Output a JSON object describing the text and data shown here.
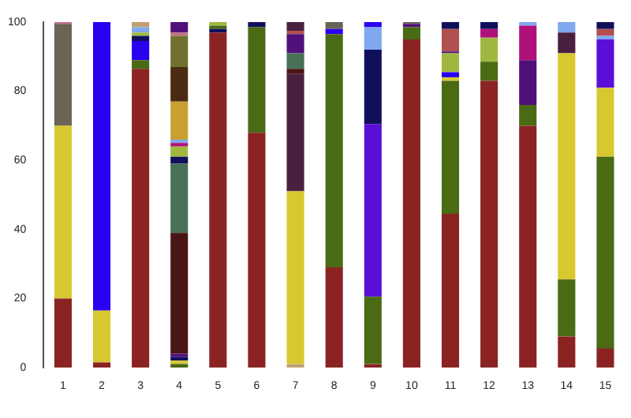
{
  "chart_data": {
    "type": "bar",
    "stacked": true,
    "categories": [
      "1",
      "2",
      "3",
      "4",
      "5",
      "6",
      "7",
      "8",
      "9",
      "10",
      "11",
      "12",
      "13",
      "14",
      "15"
    ],
    "series": [
      {
        "values": [
          20,
          1.5,
          86.5,
          1,
          97,
          68,
          1,
          29,
          1,
          95,
          44.5,
          83,
          70,
          9,
          5.5
        ],
        "colors": [
          "#8b2323",
          "#8b2323",
          "#8b2323",
          "#4a6a14",
          "#8b2323",
          "#8b2323",
          "#c0a070",
          "#8b2323",
          "#8b2323",
          "#8b2323",
          "#8b2323",
          "#8b2323",
          "#8b2323",
          "#8b2323",
          "#8b2323"
        ]
      },
      {
        "values": [
          50,
          15,
          2.5,
          1,
          1,
          30.5,
          50,
          67.5,
          19.5,
          3.5,
          38.5,
          5.5,
          6,
          16.5,
          55.5
        ],
        "colors": [
          "#d8c830",
          "#d8c830",
          "#4a6a14",
          "#d8c830",
          "#10105a",
          "#4a6a14",
          "#d8c830",
          "#4a6a14",
          "#4a6a14",
          "#4a6a14",
          "#4a6a14",
          "#4a6a14",
          "#4a6a14",
          "#4a6a14",
          "#4a6a14"
        ]
      },
      {
        "values": [
          29.5,
          83.5,
          5.5,
          1,
          1,
          1.5,
          34,
          1.5,
          50,
          1,
          1,
          7,
          13,
          65.5,
          20
        ],
        "colors": [
          "#6a6455",
          "#2a00f0",
          "#2a00f0",
          "#10105a",
          "#4a6a14",
          "#10105a",
          "#4a2040",
          "#2a00f0",
          "#5a0fd8",
          "#50107a",
          "#d8c830",
          "#a0b840",
          "#50107a",
          "#d8c830",
          "#d8c830"
        ]
      },
      {
        "values": [
          0.5,
          null,
          1.5,
          1,
          1,
          null,
          1.5,
          2,
          21.5,
          0.5,
          1.5,
          2.5,
          10,
          6,
          14
        ],
        "colors": [
          "#c07080",
          null,
          "#10105a",
          "#50107a",
          "#a0b840",
          null,
          "#4a1515",
          "#6a6455",
          "#10105a",
          "#6a6455",
          "#2a00f0",
          "#b0107a",
          "#b0107a",
          "#4a2040",
          "#5a0fd8"
        ]
      },
      {
        "values": [
          null,
          null,
          1,
          35,
          null,
          null,
          4.5,
          null,
          6.5,
          null,
          5.5,
          2,
          1,
          3,
          1
        ],
        "colors": [
          null,
          null,
          "#a0b840",
          "#4a1515",
          null,
          null,
          "#4a7058",
          null,
          "#80a8f0",
          null,
          "#a0b840",
          "#10105a",
          "#80a8f0",
          "#80a8f0",
          "#80a8f0"
        ]
      },
      {
        "values": [
          null,
          null,
          1.5,
          20,
          null,
          null,
          5.5,
          null,
          1.5,
          null,
          0.5,
          null,
          null,
          null,
          2
        ],
        "colors": [
          null,
          null,
          "#80a8f0",
          "#4a7058",
          null,
          null,
          "#50107a",
          null,
          "#2a00f0",
          null,
          "#50107a",
          null,
          null,
          null,
          "#b05050"
        ]
      },
      {
        "values": [
          null,
          null,
          1.5,
          2,
          null,
          null,
          1,
          null,
          null,
          null,
          6.5,
          null,
          null,
          null,
          2
        ],
        "colors": [
          null,
          null,
          "#c0a070",
          "#10105a",
          null,
          null,
          "#b05050",
          null,
          null,
          null,
          "#b05050",
          null,
          null,
          null,
          "#10105a"
        ]
      },
      {
        "values": [
          null,
          null,
          null,
          3,
          null,
          null,
          2.5,
          null,
          null,
          null,
          2,
          null,
          null,
          null,
          null
        ],
        "colors": [
          null,
          null,
          null,
          "#a0b840",
          null,
          null,
          "#4a2040",
          null,
          null,
          null,
          "#10105a",
          null,
          null,
          null,
          null
        ]
      },
      {
        "values": [
          null,
          null,
          null,
          1,
          null,
          null,
          null,
          null,
          null,
          null,
          null,
          null,
          null,
          null,
          null
        ],
        "colors": [
          null,
          null,
          null,
          "#b0107a",
          null,
          null,
          null,
          null,
          null,
          null,
          null,
          null,
          null,
          null,
          null
        ]
      },
      {
        "values": [
          null,
          null,
          null,
          1,
          null,
          null,
          null,
          null,
          null,
          null,
          null,
          null,
          null,
          null,
          null
        ],
        "colors": [
          null,
          null,
          null,
          "#80a8f0",
          null,
          null,
          null,
          null,
          null,
          null,
          null,
          null,
          null,
          null,
          null
        ]
      },
      {
        "values": [
          null,
          null,
          null,
          11,
          null,
          null,
          null,
          null,
          null,
          null,
          null,
          null,
          null,
          null,
          null
        ],
        "colors": [
          null,
          null,
          null,
          "#c8a030",
          null,
          null,
          null,
          null,
          null,
          null,
          null,
          null,
          null,
          null,
          null
        ]
      },
      {
        "values": [
          null,
          null,
          null,
          10,
          null,
          null,
          null,
          null,
          null,
          null,
          null,
          null,
          null,
          null,
          null
        ],
        "colors": [
          null,
          null,
          null,
          "#4a2a10",
          null,
          null,
          null,
          null,
          null,
          null,
          null,
          null,
          null,
          null,
          null
        ]
      },
      {
        "values": [
          null,
          null,
          null,
          9,
          null,
          null,
          null,
          null,
          null,
          null,
          null,
          null,
          null,
          null,
          null
        ],
        "colors": [
          null,
          null,
          null,
          "#707030",
          null,
          null,
          null,
          null,
          null,
          null,
          null,
          null,
          null,
          null,
          null
        ]
      },
      {
        "values": [
          null,
          null,
          null,
          1,
          null,
          null,
          null,
          null,
          null,
          null,
          null,
          null,
          null,
          null,
          null
        ],
        "colors": [
          null,
          null,
          null,
          "#c07080",
          null,
          null,
          null,
          null,
          null,
          null,
          null,
          null,
          null,
          null,
          null
        ]
      },
      {
        "values": [
          null,
          null,
          null,
          3,
          null,
          null,
          null,
          null,
          null,
          null,
          null,
          null,
          null,
          null,
          null
        ],
        "colors": [
          null,
          null,
          null,
          "#50107a",
          null,
          null,
          null,
          null,
          null,
          null,
          null,
          null,
          null,
          null,
          null
        ]
      }
    ],
    "ylim": [
      0,
      100
    ],
    "yticks": [
      0,
      20,
      40,
      60,
      80,
      100
    ],
    "grid": false,
    "legend": false
  }
}
